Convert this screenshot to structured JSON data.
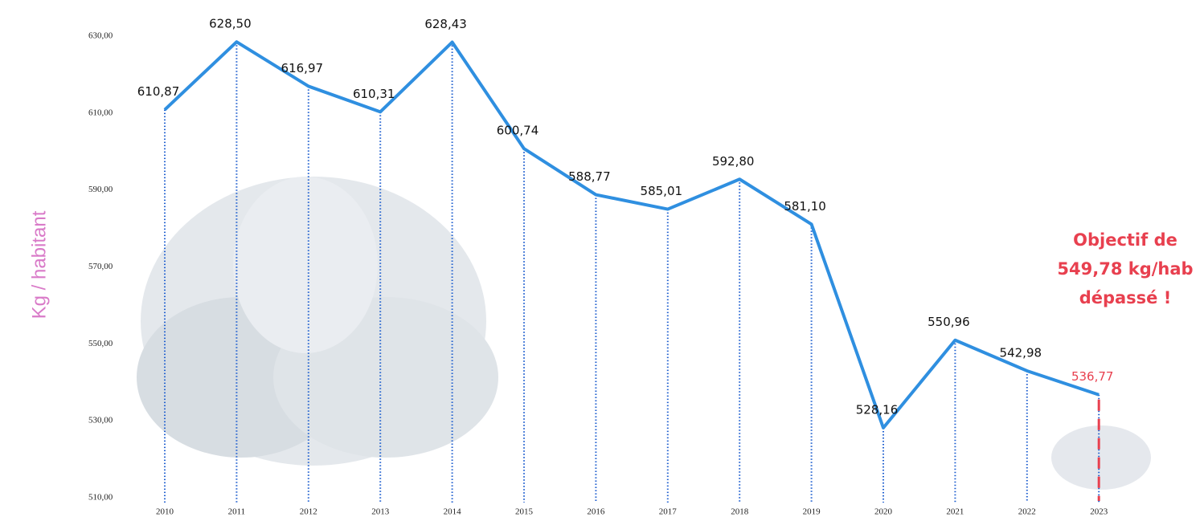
{
  "chart_data": {
    "type": "line",
    "y_label": "Kg / habitant",
    "categories": [
      "2010",
      "2011",
      "2012",
      "2013",
      "2014",
      "2015",
      "2016",
      "2017",
      "2018",
      "2019",
      "2020",
      "2021",
      "2022",
      "2023"
    ],
    "series": [
      {
        "color": "#2f8fe0",
        "values": [
          610.87,
          628.5,
          616.97,
          610.31,
          628.43,
          600.74,
          588.77,
          585.01,
          592.8,
          581.1,
          528.16,
          550.96,
          542.98,
          536.77
        ],
        "value_labels": [
          "610,87",
          "628,50",
          "616,97",
          "610,31",
          "628,43",
          "600,74",
          "588,77",
          "585,01",
          "592,80",
          "581,10",
          "528,16",
          "550,96",
          "542,98",
          "536,77"
        ]
      }
    ],
    "ylim": [
      510,
      630
    ],
    "yticks": [
      {
        "value": 510,
        "label": "510,00"
      },
      {
        "value": 530,
        "label": "530,00"
      },
      {
        "value": 550,
        "label": "550,00"
      },
      {
        "value": 570,
        "label": "570,00"
      },
      {
        "value": 590,
        "label": "590,00"
      },
      {
        "value": 610,
        "label": "610,00"
      },
      {
        "value": 630,
        "label": "630,00"
      }
    ],
    "annotation": [
      "Objectif de",
      "549,78 kg/hab",
      "dépassé !"
    ],
    "annotation_color": "#e8404f"
  }
}
